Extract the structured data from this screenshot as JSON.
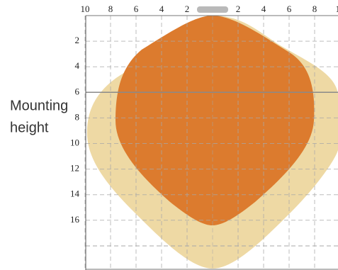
{
  "chart_data": {
    "type": "coverage",
    "ylabel": [
      "Mounting",
      "height"
    ],
    "xlim": [
      -10,
      10
    ],
    "ylim": [
      0,
      20
    ],
    "xticks": [
      {
        "value": -10,
        "label": "10"
      },
      {
        "value": -8,
        "label": "8"
      },
      {
        "value": -6,
        "label": "6"
      },
      {
        "value": -4,
        "label": "4"
      },
      {
        "value": -2,
        "label": "2"
      },
      2,
      4,
      6,
      8,
      10
    ],
    "yticks": [
      2,
      4,
      6,
      8,
      10,
      12,
      14,
      16
    ],
    "mounting_height": 6,
    "grid": true,
    "colors": {
      "outer": "#eed9a4",
      "inner": "#dc7b2e",
      "heater": "#b9b9b9",
      "mount_line": "#8a8a8a"
    }
  }
}
